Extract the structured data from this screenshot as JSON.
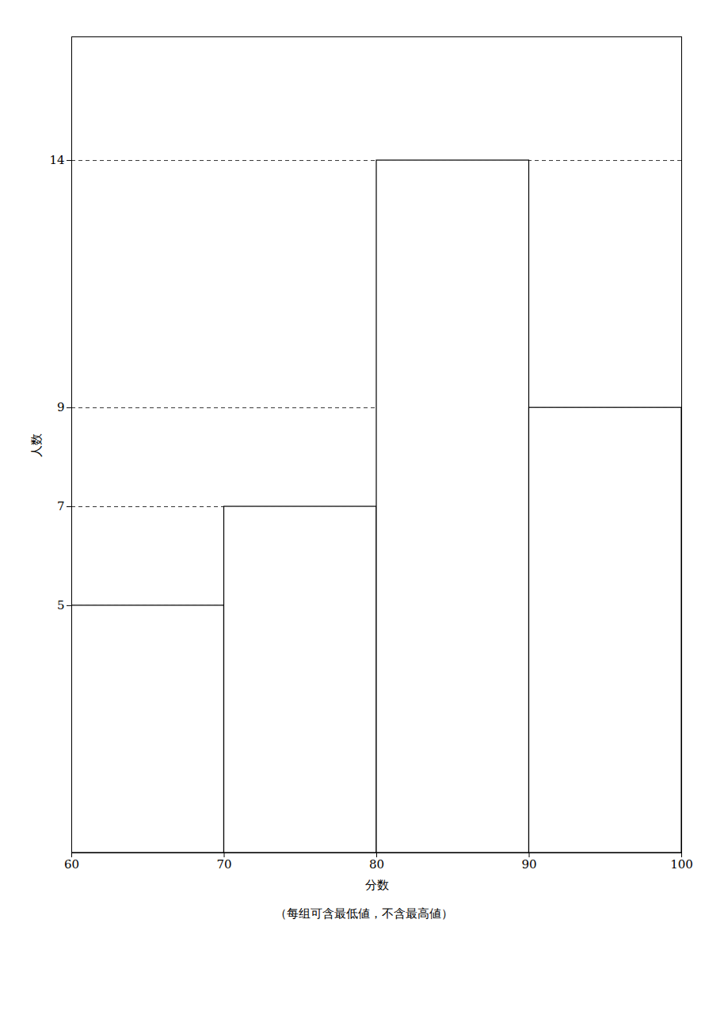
{
  "chart_data": {
    "type": "histogram",
    "bins": [
      60,
      70,
      80,
      90,
      100
    ],
    "values": [
      5,
      7,
      14,
      9
    ],
    "color": "white",
    "xlabel": "分数",
    "ylabel": "人数",
    "caption": "（每组可含最低値，不含最高値）",
    "xlim": [
      60,
      100
    ],
    "xticks": [
      60,
      70,
      80,
      90,
      100
    ],
    "ylim": [
      0,
      16.5
    ],
    "yticks": [
      5,
      7,
      9,
      14
    ],
    "grid": "y"
  }
}
